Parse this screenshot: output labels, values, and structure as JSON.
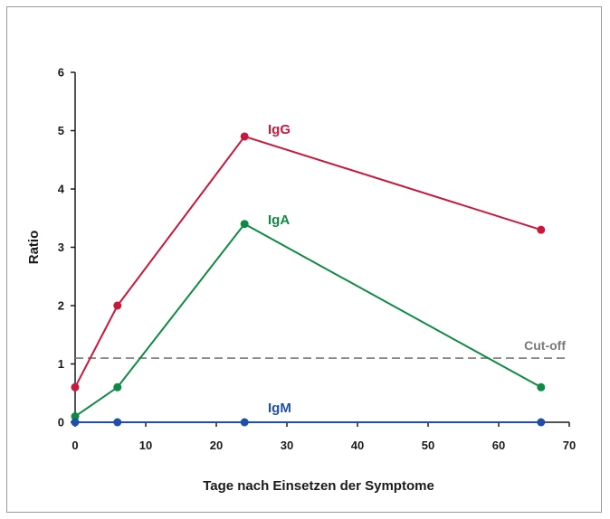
{
  "chart_data": {
    "type": "line",
    "xlabel": "Tage nach Einsetzen der Symptome",
    "ylabel": "Ratio",
    "xlim": [
      0,
      70
    ],
    "ylim": [
      0,
      6
    ],
    "xticks": [
      0,
      10,
      20,
      30,
      40,
      50,
      60,
      70
    ],
    "yticks": [
      0,
      1,
      2,
      3,
      4,
      5,
      6
    ],
    "grid": false,
    "series": [
      {
        "name": "IgG",
        "color": "#c8193c",
        "x": [
          0,
          6,
          24,
          66
        ],
        "y": [
          0.6,
          2.0,
          4.9,
          3.3
        ]
      },
      {
        "name": "IgA",
        "color": "#0f8a45",
        "x": [
          0,
          6,
          24,
          66
        ],
        "y": [
          0.1,
          0.6,
          3.4,
          0.6
        ]
      },
      {
        "name": "IgM",
        "color": "#1f4fa8",
        "x": [
          0,
          6,
          24,
          66
        ],
        "y": [
          0,
          0,
          0,
          0
        ]
      }
    ],
    "reference_line": {
      "label": "Cut-off",
      "y": 1.1,
      "color": "#7a7a7a",
      "style": "dashed"
    }
  }
}
